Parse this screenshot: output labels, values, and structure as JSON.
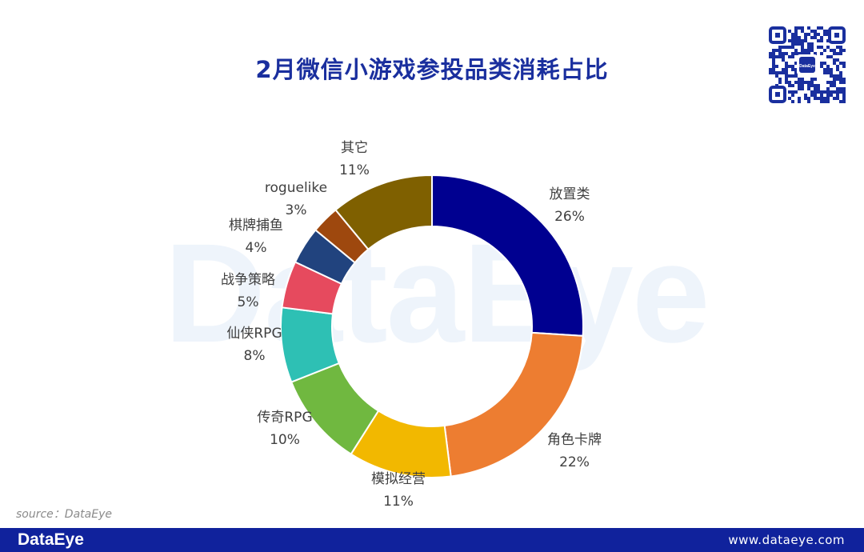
{
  "page": {
    "title": "2月微信小游戏参投品类消耗占比",
    "watermark": "DataEye",
    "source": "source：DataEye",
    "footer_brand": "DataEye",
    "footer_url": "www.dataeye.com",
    "qr_center_text": "DataEye"
  },
  "chart_data": {
    "type": "pie",
    "title": "2月微信小游戏参投品类消耗占比",
    "donut": true,
    "categories": [
      "放置类",
      "角色卡牌",
      "模拟经营",
      "传奇RPG",
      "仙侠RPG",
      "战争策略",
      "棋牌捕鱼",
      "roguelike",
      "其它"
    ],
    "values": [
      26,
      22,
      11,
      10,
      8,
      5,
      4,
      3,
      11
    ],
    "labels": [
      "26%",
      "22%",
      "11%",
      "10%",
      "8%",
      "5%",
      "4%",
      "3%",
      "11%"
    ],
    "colors": [
      "#000090",
      "#ed7d31",
      "#f2b800",
      "#70b840",
      "#2ec0b4",
      "#e64a5e",
      "#21437e",
      "#9e480e",
      "#7f6000"
    ]
  }
}
